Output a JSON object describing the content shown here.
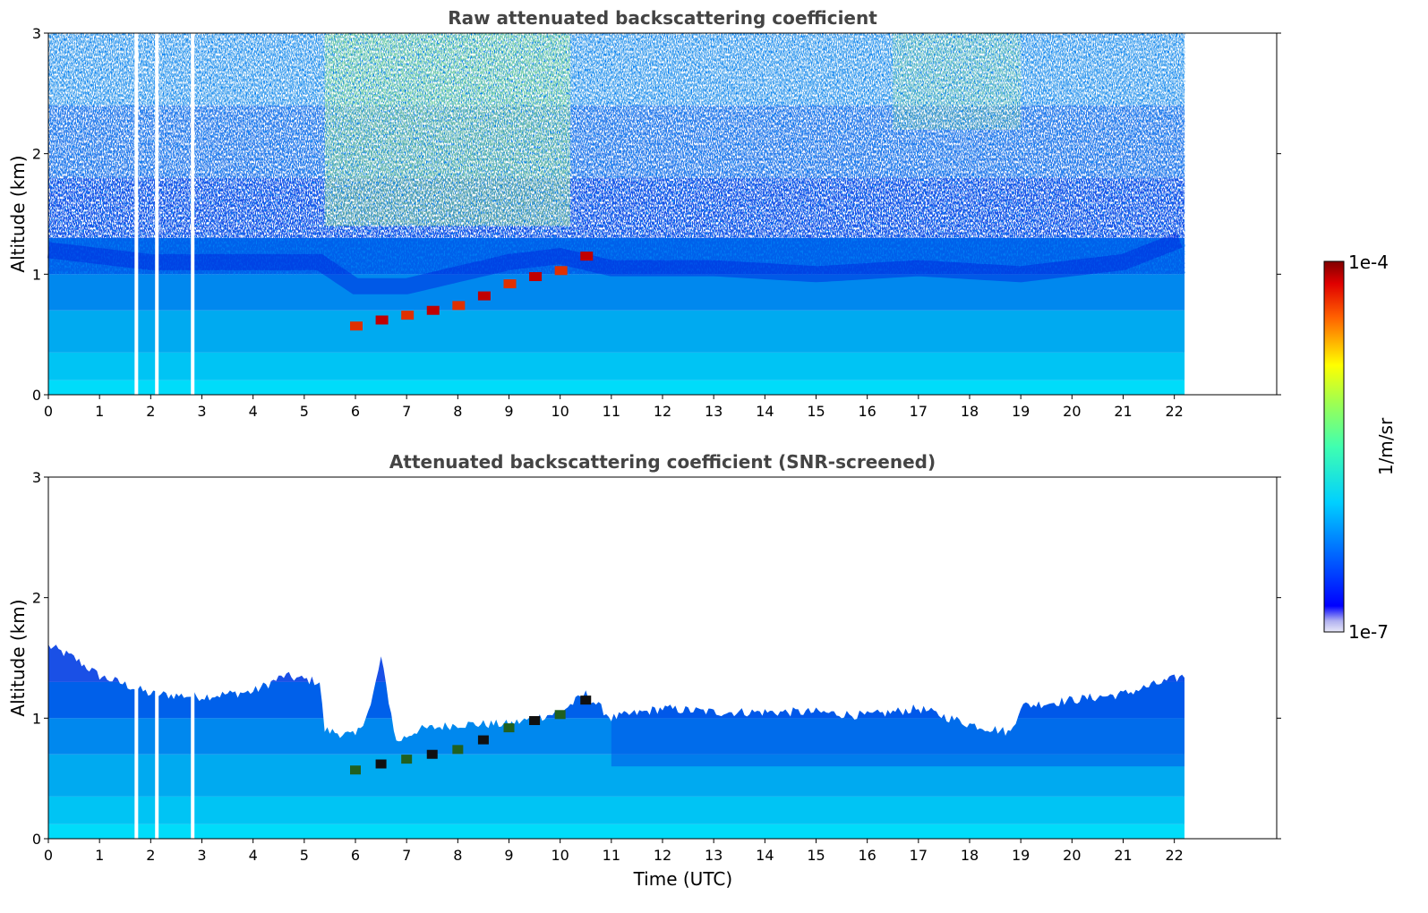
{
  "chart_data": [
    {
      "type": "heatmap",
      "title": "Raw attenuated backscattering coefficient",
      "xlabel": "",
      "ylabel": "Altitude (km)",
      "xlim": [
        0,
        24
      ],
      "ylim": [
        0,
        3
      ],
      "x_ticks": [
        "0",
        "1",
        "2",
        "3",
        "4",
        "5",
        "6",
        "7",
        "8",
        "9",
        "10",
        "11",
        "12",
        "13",
        "14",
        "15",
        "16",
        "17",
        "18",
        "19",
        "20",
        "21",
        "22"
      ],
      "y_ticks": [
        "0",
        "1",
        "2",
        "3"
      ],
      "data_time_range": [
        0,
        22.2
      ],
      "gaps_utc": [
        1.72,
        2.12,
        2.82
      ],
      "features": [
        {
          "name": "boundary_layer_top",
          "x": [
            0,
            2,
            4,
            5.3,
            6,
            7,
            8,
            9,
            10,
            11,
            13,
            15,
            17,
            19,
            21,
            22.2
          ],
          "y": [
            1.2,
            1.1,
            1.1,
            1.1,
            0.9,
            0.9,
            1.0,
            1.1,
            1.15,
            1.05,
            1.05,
            1.0,
            1.05,
            1.0,
            1.1,
            1.3
          ]
        },
        {
          "name": "cloud_layer",
          "x": [
            6.0,
            6.5,
            7.0,
            7.5,
            8.0,
            8.5,
            9.0,
            9.5,
            10.0,
            10.5
          ],
          "y": [
            0.57,
            0.62,
            0.66,
            0.7,
            0.74,
            0.82,
            0.92,
            0.98,
            1.03,
            1.15
          ]
        }
      ]
    },
    {
      "type": "heatmap",
      "title": "Attenuated backscattering coefficient (SNR-screened)",
      "xlabel": "Time (UTC)",
      "ylabel": "Altitude (km)",
      "xlim": [
        0,
        24
      ],
      "ylim": [
        0,
        3
      ],
      "x_ticks": [
        "0",
        "1",
        "2",
        "3",
        "4",
        "5",
        "6",
        "7",
        "8",
        "9",
        "10",
        "11",
        "12",
        "13",
        "14",
        "15",
        "16",
        "17",
        "18",
        "19",
        "20",
        "21",
        "22"
      ],
      "y_ticks": [
        "0",
        "1",
        "2",
        "3"
      ],
      "data_time_range": [
        0,
        22.2
      ],
      "gaps_utc": [
        1.72,
        2.12,
        2.82
      ],
      "screened_top": {
        "x": [
          0,
          0.5,
          1,
          1.5,
          2,
          3,
          4,
          4.6,
          5.3,
          5.4,
          6.0,
          6.3,
          6.5,
          6.8,
          7.2,
          8,
          9,
          10,
          10.5,
          11,
          12,
          13,
          14,
          15,
          16,
          17,
          18,
          18.8,
          19.0,
          20,
          21,
          22.2
        ],
        "y": [
          1.6,
          1.5,
          1.35,
          1.28,
          1.2,
          1.18,
          1.22,
          1.35,
          1.3,
          0.9,
          0.85,
          1.1,
          1.5,
          0.8,
          0.9,
          0.95,
          0.95,
          1.05,
          1.2,
          1.0,
          1.08,
          1.05,
          1.05,
          1.05,
          1.02,
          1.08,
          0.95,
          0.88,
          1.1,
          1.15,
          1.2,
          1.35
        ]
      }
    }
  ],
  "colorbar": {
    "max_label": "1e-4",
    "min_label": "1e-7",
    "unit_label": "1/m/sr",
    "colormap": "jet"
  }
}
